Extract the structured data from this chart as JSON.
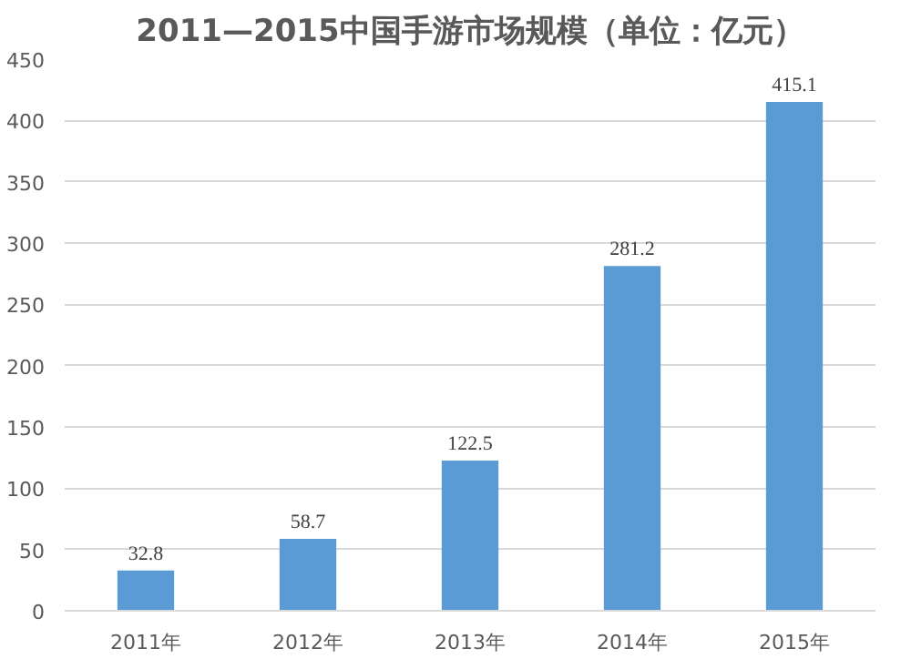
{
  "chart_data": {
    "type": "bar",
    "title": "2011—2015中国手游市场规模（单位：亿元）",
    "categories": [
      "2011年",
      "2012年",
      "2013年",
      "2014年",
      "2015年"
    ],
    "values": [
      32.8,
      58.7,
      122.5,
      281.2,
      415.1
    ],
    "color": "#5b9bd5",
    "ylim": [
      0,
      450
    ],
    "yticks": [
      0,
      50,
      100,
      150,
      200,
      250,
      300,
      350,
      400,
      450
    ],
    "grid": "y",
    "data_labels": true
  }
}
